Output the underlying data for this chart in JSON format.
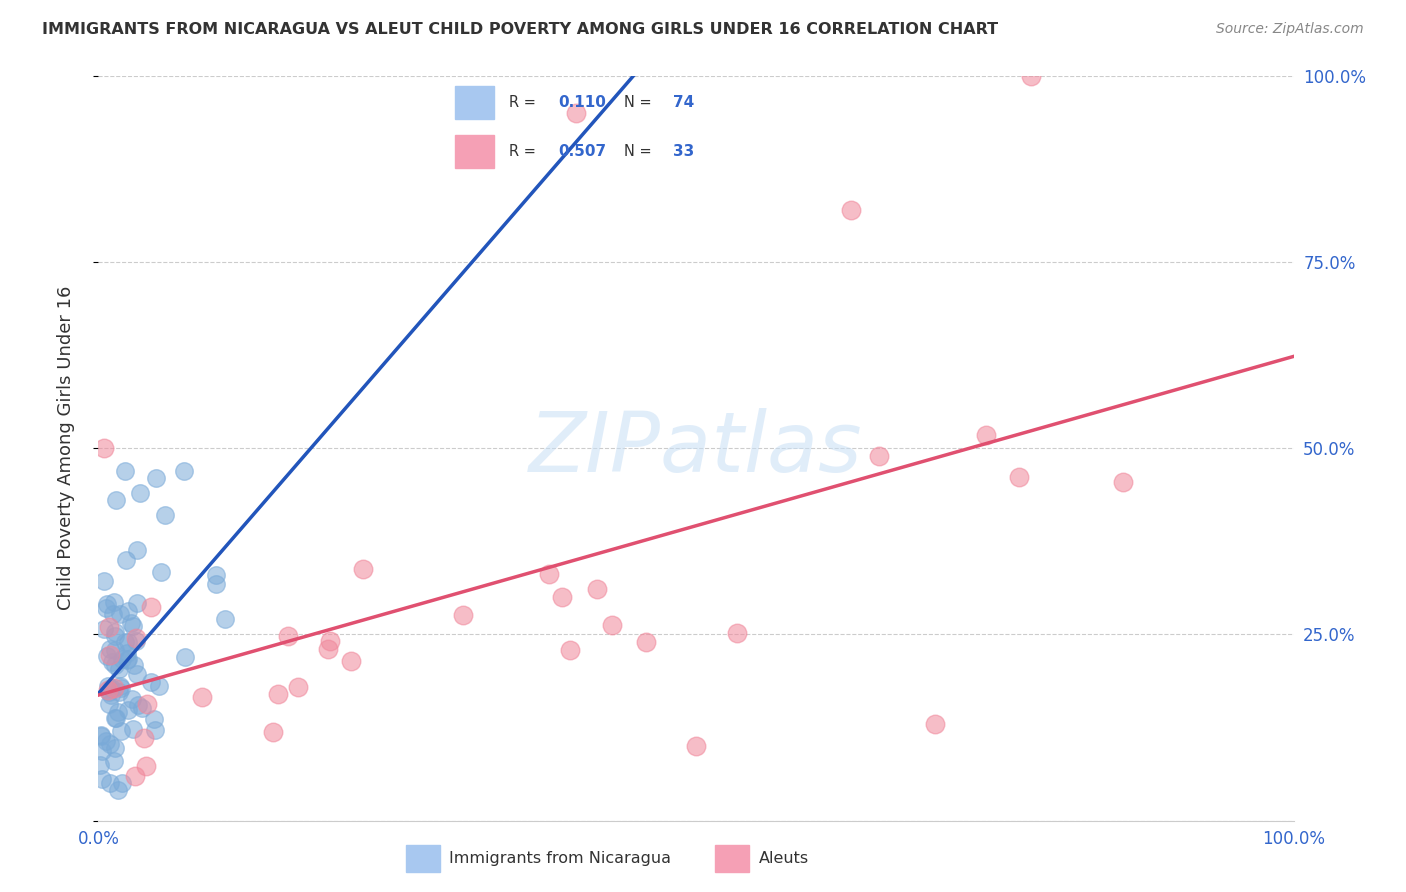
{
  "title": "IMMIGRANTS FROM NICARAGUA VS ALEUT CHILD POVERTY AMONG GIRLS UNDER 16 CORRELATION CHART",
  "source": "Source: ZipAtlas.com",
  "ylabel": "Child Poverty Among Girls Under 16",
  "xlim": [
    0,
    1.0
  ],
  "ylim": [
    0,
    1.0
  ],
  "background_color": "#ffffff",
  "grid_color": "#cccccc",
  "blue_circle_color": "#7aaad8",
  "pink_circle_color": "#f0879a",
  "blue_line_color": "#2255bb",
  "pink_line_color": "#e05070",
  "dash_color": "#aabbdd",
  "watermark_color": "#c8dff5",
  "title_color": "#333333",
  "source_color": "#888888",
  "tick_color": "#3366cc",
  "legend_blue_fill": "#a8c8f0",
  "legend_pink_fill": "#f5a0b5",
  "legend_text_color": "#333333",
  "legend_value_color": "#3366cc",
  "R_blue": "0.110",
  "N_blue": "74",
  "R_pink": "0.507",
  "N_pink": "33",
  "label_blue": "Immigrants from Nicaragua",
  "label_pink": "Aleuts"
}
